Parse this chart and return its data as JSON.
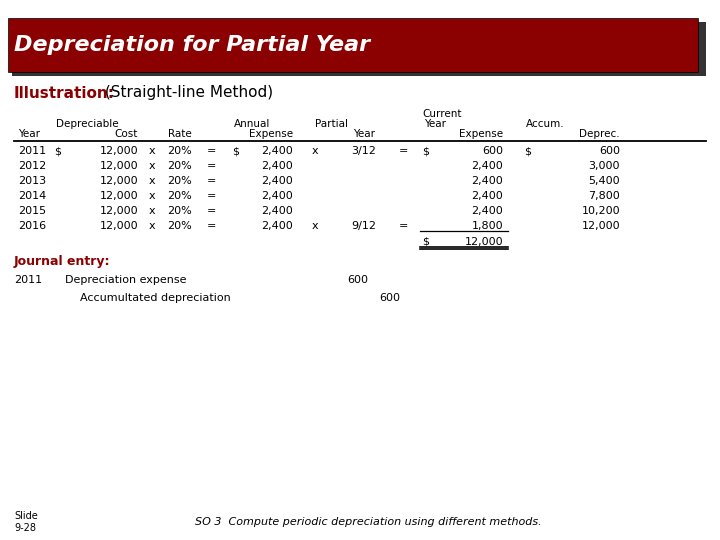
{
  "title": "Depreciation for Partial Year",
  "subtitle_bold": "Illustration:",
  "subtitle_normal": " (Straight-line Method)",
  "bg_color": "#FFFFFF",
  "title_bg": "#8B0000",
  "title_color": "#FFFFFF",
  "shadow_color": "#333333",
  "journal_label": "Journal entry:",
  "slide_label": "Slide\n9-28",
  "footer_text": "SO 3  Compute periodic depreciation using different methods.",
  "row_data": [
    [
      "2011",
      "$",
      "12,000",
      "x",
      "20%",
      "=",
      "$",
      "2,400",
      "x",
      "3/12",
      "=",
      "$",
      "600",
      "$",
      "600"
    ],
    [
      "2012",
      "",
      "12,000",
      "x",
      "20%",
      "=",
      "",
      "2,400",
      "",
      "",
      "",
      "",
      "2,400",
      "",
      "3,000"
    ],
    [
      "2013",
      "",
      "12,000",
      "x",
      "20%",
      "=",
      "",
      "2,400",
      "",
      "",
      "",
      "",
      "2,400",
      "",
      "5,400"
    ],
    [
      "2014",
      "",
      "12,000",
      "x",
      "20%",
      "=",
      "",
      "2,400",
      "",
      "",
      "",
      "",
      "2,400",
      "",
      "7,800"
    ],
    [
      "2015",
      "",
      "12,000",
      "x",
      "20%",
      "=",
      "",
      "2,400",
      "",
      "",
      "",
      "",
      "2,400",
      "",
      "10,200"
    ],
    [
      "2016",
      "",
      "12,000",
      "x",
      "20%",
      "=",
      "",
      "2,400",
      "x",
      "9/12",
      "=",
      "",
      "1,800",
      "",
      "12,000"
    ]
  ]
}
